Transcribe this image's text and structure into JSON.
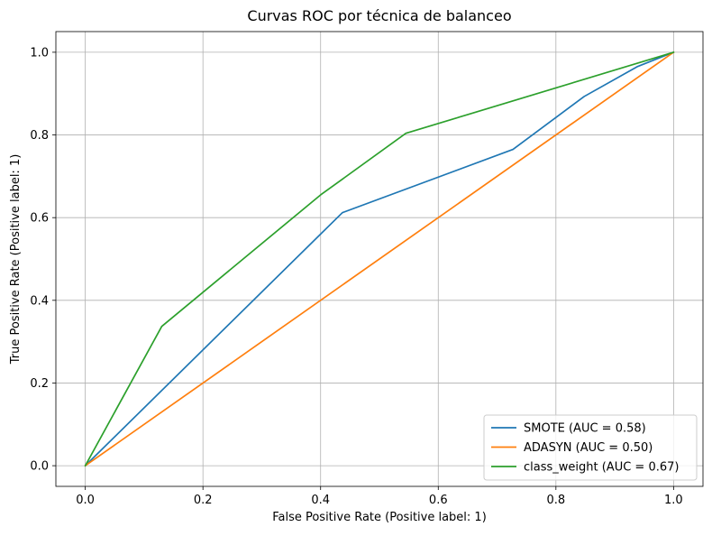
{
  "chart_data": {
    "type": "line",
    "title": "Curvas ROC por técnica de balanceo",
    "xlabel": "False Positive Rate (Positive label: 1)",
    "ylabel": "True Positive Rate (Positive label: 1)",
    "xlim": [
      -0.05,
      1.05
    ],
    "ylim": [
      -0.05,
      1.05
    ],
    "xticks": [
      0.0,
      0.2,
      0.4,
      0.6,
      0.8,
      1.0
    ],
    "yticks": [
      0.0,
      0.2,
      0.4,
      0.6,
      0.8,
      1.0
    ],
    "xtick_labels": [
      "0.0",
      "0.2",
      "0.4",
      "0.6",
      "0.8",
      "1.0"
    ],
    "ytick_labels": [
      "0.0",
      "0.2",
      "0.4",
      "0.6",
      "0.8",
      "1.0"
    ],
    "grid": true,
    "legend_position": "bottom-right",
    "series": [
      {
        "name": "SMOTE (AUC = 0.58)",
        "color": "#1f77b4",
        "x": [
          0.0,
          0.437,
          0.727,
          0.848,
          0.938,
          1.0
        ],
        "y": [
          0.0,
          0.612,
          0.765,
          0.893,
          0.965,
          1.0
        ]
      },
      {
        "name": "ADASYN (AUC = 0.50)",
        "color": "#ff7f0e",
        "x": [
          0.0,
          1.0
        ],
        "y": [
          0.0,
          1.0
        ]
      },
      {
        "name": "class_weight (AUC = 0.67)",
        "color": "#2ca02c",
        "x": [
          0.0,
          0.13,
          0.4,
          0.545,
          1.0
        ],
        "y": [
          0.0,
          0.337,
          0.655,
          0.804,
          1.0
        ]
      }
    ]
  }
}
